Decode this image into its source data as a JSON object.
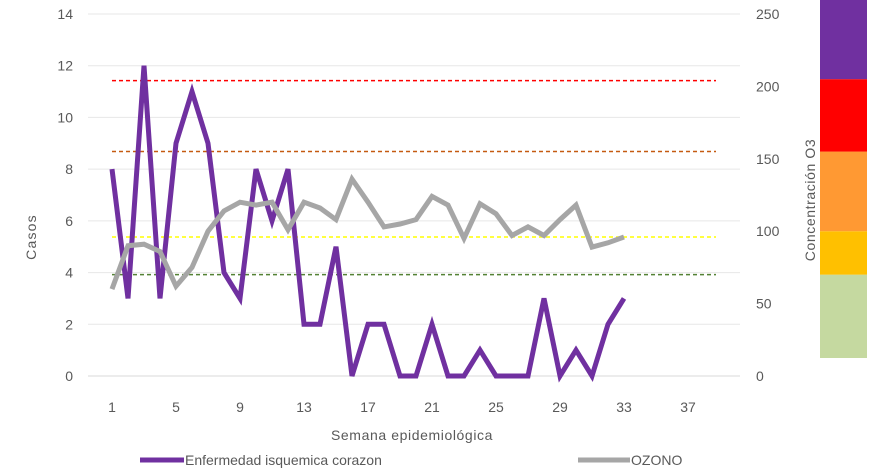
{
  "chart_data": {
    "type": "line",
    "title": "",
    "xlabel": "Semana epidemiológica",
    "ylabel": "Casos",
    "y2label": "Concentración O3",
    "xlim": [
      1,
      40
    ],
    "ylim": [
      0,
      14
    ],
    "y2lim": [
      0,
      250
    ],
    "x_ticks": [
      "1",
      "5",
      "9",
      "13",
      "17",
      "21",
      "25",
      "29",
      "33",
      "37"
    ],
    "y_ticks": [
      "0",
      "2",
      "4",
      "6",
      "8",
      "10",
      "12",
      "14"
    ],
    "y2_ticks": [
      "0",
      "50",
      "100",
      "150",
      "200",
      "250"
    ],
    "grid": true,
    "legend_position": "bottom",
    "series": [
      {
        "name": "Enfermedad isquemica corazon",
        "axis": "left",
        "color": "#7030a0",
        "x": [
          1,
          2,
          3,
          4,
          5,
          6,
          7,
          8,
          9,
          10,
          11,
          12,
          13,
          14,
          15,
          16,
          17,
          18,
          19,
          20,
          21,
          22,
          23,
          24,
          25,
          26,
          27,
          28,
          29,
          30,
          31,
          32,
          33
        ],
        "values": [
          8,
          3,
          12,
          3,
          9,
          11,
          9,
          4,
          3,
          8,
          6,
          8,
          2,
          2,
          5,
          0,
          2,
          2,
          0,
          0,
          2,
          0,
          0,
          1,
          0,
          0,
          0,
          3,
          0,
          1,
          0,
          2,
          3
        ]
      },
      {
        "name": "OZONO",
        "axis": "right",
        "color": "#a6a6a6",
        "x": [
          1,
          2,
          3,
          4,
          5,
          6,
          7,
          8,
          9,
          10,
          11,
          12,
          13,
          14,
          15,
          16,
          17,
          18,
          19,
          20,
          21,
          22,
          23,
          24,
          25,
          26,
          27,
          28,
          29,
          30,
          31,
          32,
          33
        ],
        "values": [
          60,
          90,
          91,
          86,
          62,
          75,
          100,
          114,
          120,
          118,
          120,
          101,
          120,
          116,
          108,
          136,
          120,
          103,
          105,
          108,
          124,
          118,
          95,
          119,
          112,
          97,
          103,
          97,
          108,
          118,
          89,
          92,
          96
        ]
      }
    ],
    "reference_lines": [
      {
        "axis": "right",
        "value": 204,
        "color": "#ff0000"
      },
      {
        "axis": "right",
        "value": 155,
        "color": "#c55a11"
      },
      {
        "axis": "right",
        "value": 96,
        "color": "#ffff00"
      },
      {
        "axis": "right",
        "value": 70,
        "color": "#548235"
      }
    ],
    "color_scale": [
      {
        "from": 0,
        "to": 70,
        "color": "#c5d9a0"
      },
      {
        "from": 70,
        "to": 100,
        "color": "#ffc000"
      },
      {
        "from": 100,
        "to": 155,
        "color": "#ff9933"
      },
      {
        "from": 155,
        "to": 205,
        "color": "#ff0000"
      },
      {
        "from": 205,
        "to": 260,
        "color": "#7030a0"
      }
    ]
  }
}
